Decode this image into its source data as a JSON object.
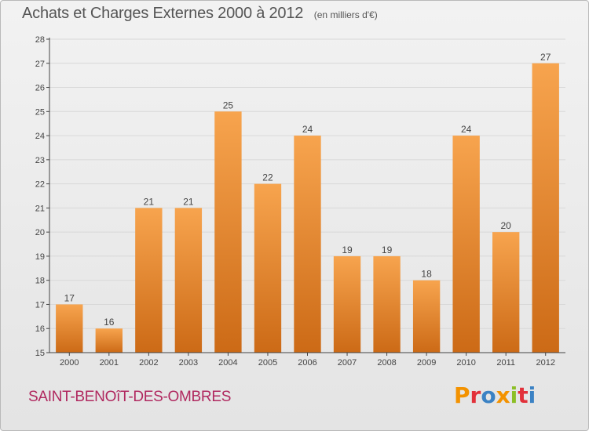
{
  "header": {
    "title": "Achats et Charges Externes 2000 à 2012",
    "unit": "(en milliers d'€)"
  },
  "footer": {
    "commune": "SAINT-BENOîT-DES-OMBRES",
    "logo_text": "Proxiti",
    "logo_colors": [
      "#f39200",
      "#e2313a",
      "#3b82c4",
      "#f39200",
      "#8cbf26",
      "#e2313a",
      "#3b82c4"
    ]
  },
  "colors": {
    "bar_top": "#f7a44e",
    "bar_bottom": "#cc6a16",
    "axis": "#444444",
    "grid": "#d8d8d8",
    "commune": "#b0285f"
  },
  "chart_data": {
    "type": "bar",
    "title": "Achats et Charges Externes 2000 à 2012",
    "subtitle": "(en milliers d'€)",
    "categories": [
      "2000",
      "2001",
      "2002",
      "2003",
      "2004",
      "2005",
      "2006",
      "2007",
      "2008",
      "2009",
      "2010",
      "2011",
      "2012"
    ],
    "values": [
      17,
      16,
      21,
      21,
      25,
      22,
      24,
      19,
      19,
      18,
      24,
      20,
      27
    ],
    "ylim": [
      15,
      28
    ],
    "yticks": [
      15,
      16,
      17,
      18,
      19,
      20,
      21,
      22,
      23,
      24,
      25,
      26,
      27,
      28
    ],
    "grid": true,
    "legend": "none"
  }
}
